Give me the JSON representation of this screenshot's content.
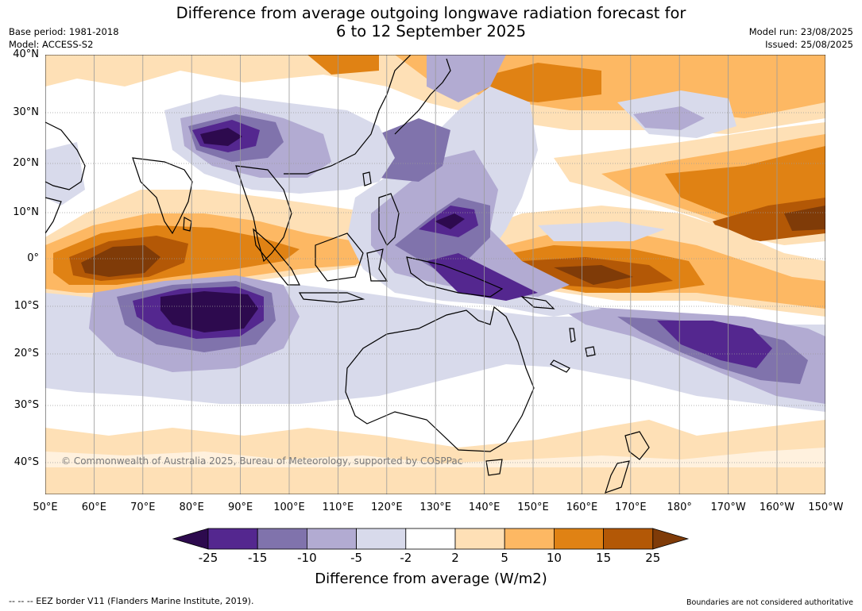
{
  "title_line1": "Difference from average outgoing longwave radiation forecast for",
  "title_line2": "6 to 12 September 2025",
  "base_period": "Base period: 1981-2018",
  "model": "Model: ACCESS-S2",
  "model_run": "Model run: 23/08/2025",
  "issued": "Issued: 25/08/2025",
  "copyright": "© Commonwealth of Australia 2025, Bureau of Meteorology, supported by COSPPac",
  "lat_labels": [
    "40°N",
    "30°N",
    "20°N",
    "10°N",
    "0°",
    "10°S",
    "20°S",
    "30°S",
    "40°S"
  ],
  "lon_labels": [
    "50°E",
    "60°E",
    "70°E",
    "80°E",
    "90°E",
    "100°E",
    "110°E",
    "120°E",
    "130°E",
    "140°E",
    "150°E",
    "160°E",
    "170°E",
    "180°",
    "170°W",
    "160°W",
    "150°W"
  ],
  "colorbar": {
    "title": "Difference from average (W/m2)",
    "tick_labels": [
      "-25",
      "-15",
      "-10",
      "-5",
      "-2",
      "2",
      "5",
      "10",
      "15",
      "25"
    ],
    "colors": [
      "#2d0a4e",
      "#54278f",
      "#8073ac",
      "#b2abd2",
      "#d8daeb",
      "#ffffff",
      "#fee0b6",
      "#fdb863",
      "#e08214",
      "#b35806",
      "#7f3b08"
    ]
  },
  "footer_left": "--  --  -- EEZ border V11 (Flanders Marine Institute, 2019).",
  "footer_right": "Boundaries are not considered authoritative"
}
